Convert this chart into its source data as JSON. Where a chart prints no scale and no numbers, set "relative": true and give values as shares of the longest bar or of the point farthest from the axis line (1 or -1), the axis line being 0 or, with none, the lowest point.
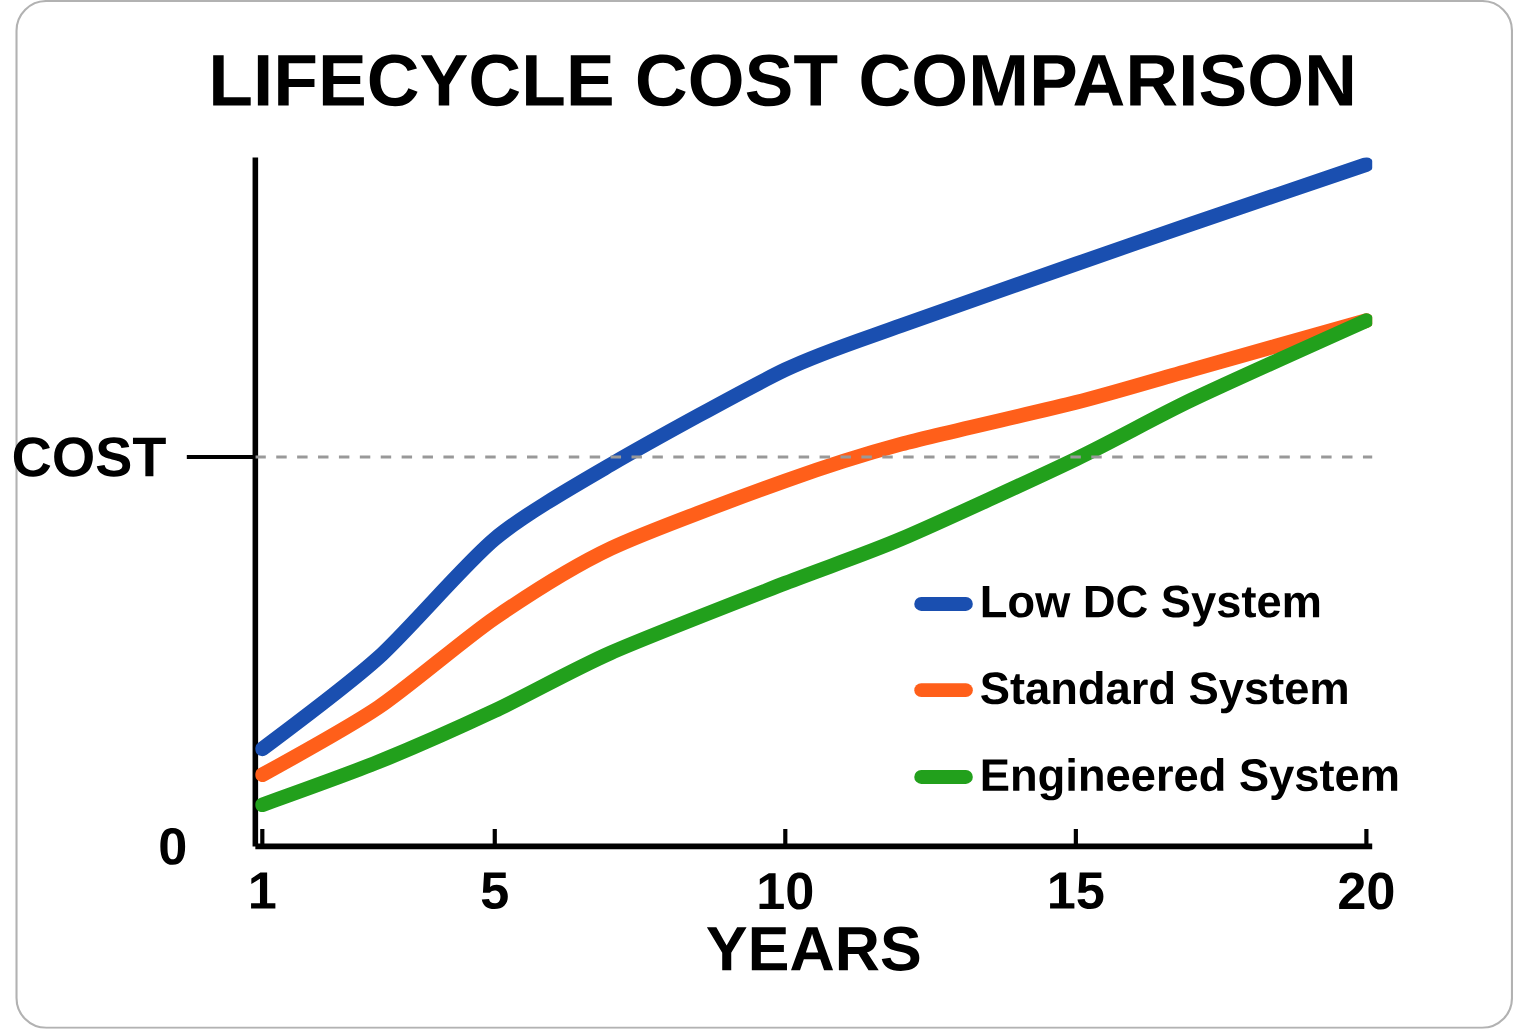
{
  "chart_data": {
    "type": "line",
    "title": "LIFECYCLE COST COMPARISON",
    "xlabel": "YEARS",
    "relative": true,
    "x": [
      1,
      3,
      5,
      7,
      10,
      12,
      15,
      17,
      20
    ],
    "xlim": [
      0.88,
      20.1
    ],
    "xticks": [
      1,
      5,
      10,
      15,
      20
    ],
    "series": [
      {
        "name": "Low DC System",
        "color": "#1a4fb0",
        "values": [
          0.143,
          0.277,
          0.451,
          0.56,
          0.699,
          0.764,
          0.854,
          0.913,
          1
        ]
      },
      {
        "name": "Standard System",
        "color": "#ff5f1a",
        "values": [
          0.105,
          0.204,
          0.335,
          0.437,
          0.536,
          0.59,
          0.651,
          0.699,
          0.771
        ]
      },
      {
        "name": "Engineered System",
        "color": "#22a01c",
        "values": [
          0.061,
          0.124,
          0.199,
          0.284,
          0.386,
          0.451,
          0.568,
          0.655,
          0.771
        ]
      }
    ],
    "ref_lines": [
      {
        "axis": "y",
        "value": 0.571,
        "label": "COST",
        "color": "#999999",
        "line_style": "dashed"
      }
    ],
    "annotations": [
      "0"
    ],
    "legend": "bottom right"
  }
}
